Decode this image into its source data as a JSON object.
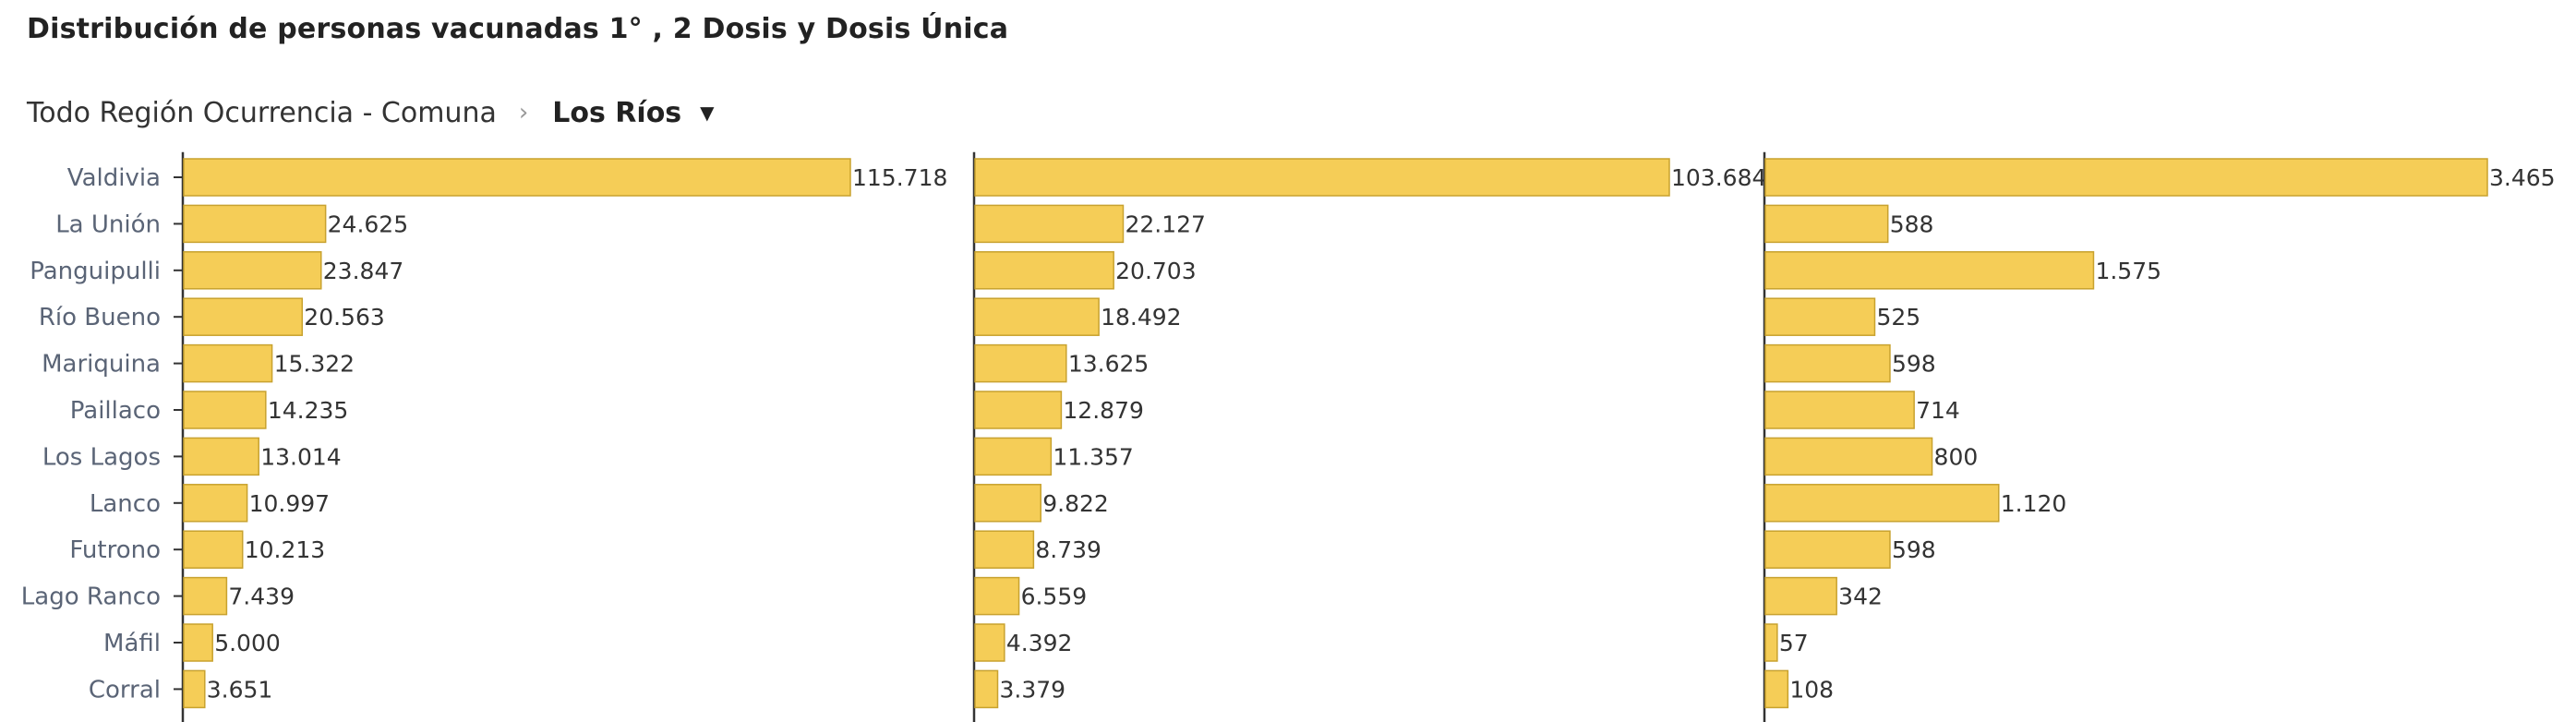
{
  "title": "Distribución de personas vacunadas 1° , 2 Dosis y Dosis Única",
  "breadcrumb": {
    "root": "Todo Región Ocurrencia - Comuna",
    "separator": "›",
    "current": "Los Ríos",
    "caret": "▼"
  },
  "colors": {
    "bar_fill": "#f5cd57",
    "bar_stroke": "#c8a22f",
    "category_text": "#5a6476"
  },
  "chart_data": [
    {
      "type": "bar",
      "orientation": "horizontal",
      "categories": [
        "Valdivia",
        "La Unión",
        "Panguipulli",
        "Río Bueno",
        "Mariquina",
        "Paillaco",
        "Los Lagos",
        "Lanco",
        "Futrono",
        "Lago Ranco",
        "Máfil",
        "Corral"
      ],
      "values": [
        115718,
        24625,
        23847,
        20563,
        15322,
        14235,
        13014,
        10997,
        10213,
        7439,
        5000,
        3651
      ],
      "labels": [
        "115.718",
        "24.625",
        "23.847",
        "20.563",
        "15.322",
        "14.235",
        "13.014",
        "10.997",
        "10.213",
        "7.439",
        "5.000",
        "3.651"
      ],
      "xlim": [
        0,
        115718
      ]
    },
    {
      "type": "bar",
      "orientation": "horizontal",
      "categories": [
        "Valdivia",
        "La Unión",
        "Panguipulli",
        "Río Bueno",
        "Mariquina",
        "Paillaco",
        "Los Lagos",
        "Lanco",
        "Futrono",
        "Lago Ranco",
        "Máfil",
        "Corral"
      ],
      "values": [
        103684,
        22127,
        20703,
        18492,
        13625,
        12879,
        11357,
        9822,
        8739,
        6559,
        4392,
        3379
      ],
      "labels": [
        "103.684",
        "22.127",
        "20.703",
        "18.492",
        "13.625",
        "12.879",
        "11.357",
        "9.822",
        "8.739",
        "6.559",
        "4.392",
        "3.379"
      ],
      "xlim": [
        0,
        103684
      ]
    },
    {
      "type": "bar",
      "orientation": "horizontal",
      "categories": [
        "Valdivia",
        "La Unión",
        "Panguipulli",
        "Río Bueno",
        "Mariquina",
        "Paillaco",
        "Los Lagos",
        "Lanco",
        "Futrono",
        "Lago Ranco",
        "Máfil",
        "Corral"
      ],
      "values": [
        3465,
        588,
        1575,
        525,
        598,
        714,
        800,
        1120,
        598,
        342,
        57,
        108
      ],
      "labels": [
        "3.465",
        "588",
        "1.575",
        "525",
        "598",
        "714",
        "800",
        "1.120",
        "598",
        "342",
        "57",
        "108"
      ],
      "xlim": [
        0,
        3465
      ]
    }
  ]
}
